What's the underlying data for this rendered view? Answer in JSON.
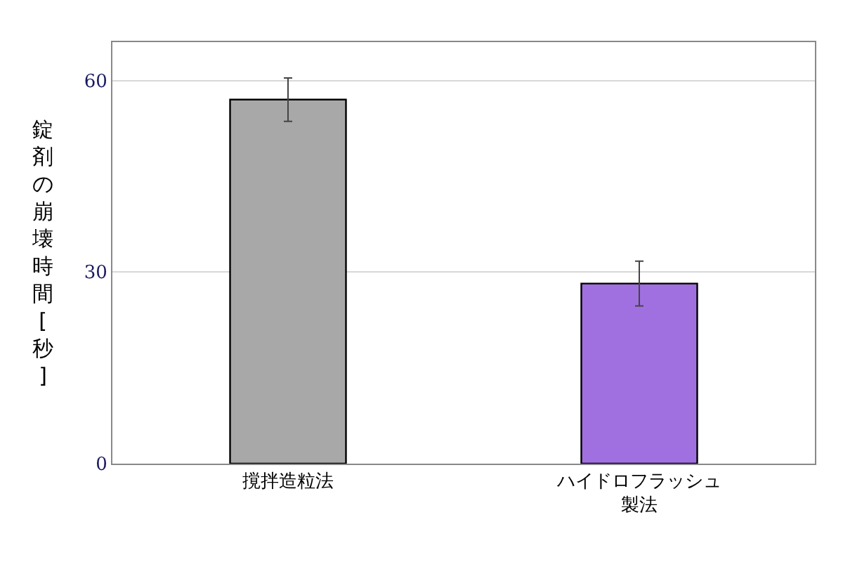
{
  "chart_data": {
    "type": "bar",
    "ylabel": "錠剤の崩壊時間[秒]",
    "categories": [
      "撹拌造粒法",
      "ハイドロフラッシュ製法"
    ],
    "values": [
      57,
      28.2
    ],
    "errors": [
      3.4,
      3.5
    ],
    "colors": [
      "#a8a8a8",
      "#a070e0"
    ],
    "ylim": [
      0,
      66
    ],
    "yticks": [
      0,
      30,
      60
    ],
    "grid": "y",
    "legend": false
  }
}
